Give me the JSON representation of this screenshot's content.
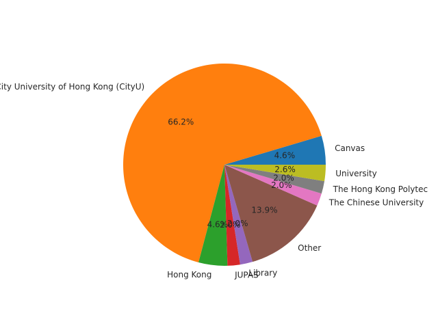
{
  "chart_data": {
    "type": "pie",
    "categories": [
      "Canvas",
      "City University of Hong Kong (CityU)",
      "Hong Kong",
      "JUPAS",
      "Library",
      "Other",
      "The Chinese University",
      "The Hong Kong Polytec",
      "University"
    ],
    "values": [
      4.6,
      66.2,
      4.6,
      2.0,
      2.0,
      13.9,
      2.0,
      2.0,
      2.6
    ],
    "percent_labels": [
      "4.6%",
      "66.2%",
      "4.6%",
      "2.0%",
      "2.0%",
      "13.9%",
      "2.0%",
      "2.0%",
      "2.6%"
    ],
    "colors": [
      "#1f77b4",
      "#ff7f0e",
      "#2ca02c",
      "#d62728",
      "#9467bd",
      "#8c564b",
      "#e377c2",
      "#7f7f7f",
      "#bcbd22"
    ],
    "start_angle_deg": 0,
    "direction": "counterclockwise"
  }
}
